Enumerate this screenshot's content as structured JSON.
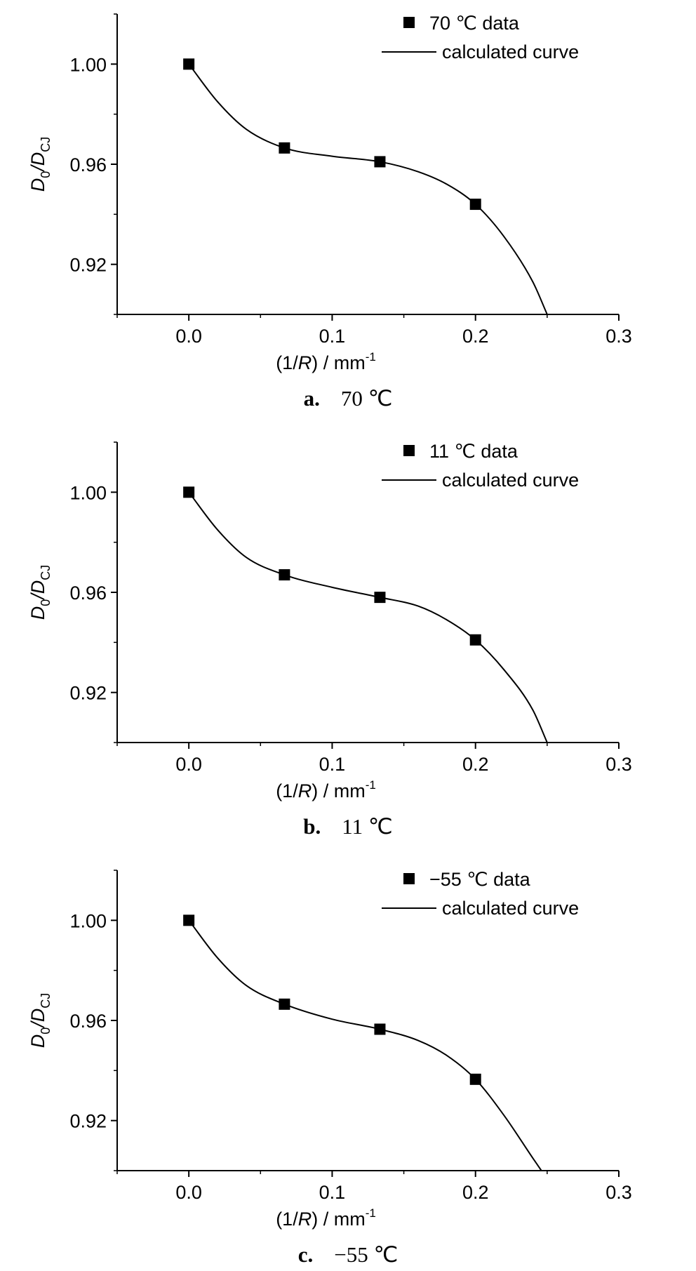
{
  "chart_data": [
    {
      "type": "scatter",
      "caption_letter": "a.",
      "caption_text": "70 ℃",
      "legend": {
        "marker_label": "70 ℃  data",
        "line_label": "calculated curve",
        "placement": "top-right"
      },
      "ylabel": {
        "main": "D",
        "sub1": "0",
        "slash": "/D",
        "sub2": "CJ"
      },
      "xlabel": {
        "pre": "(1/",
        "var": "R",
        "post": ") / mm",
        "sup": "-1"
      },
      "xlim": [
        -0.05,
        0.3
      ],
      "ylim": [
        0.9,
        1.02
      ],
      "xticks": [
        0.0,
        0.1,
        0.2,
        0.3
      ],
      "xtick_labels": [
        "0.0",
        "0.1",
        "0.2",
        "0.3"
      ],
      "yticks": [
        0.92,
        0.96,
        1.0
      ],
      "ytick_labels": [
        "0.92",
        "0.96",
        "1.00"
      ],
      "grid": false,
      "series": [
        {
          "name": "70 ℃  data",
          "kind": "markers",
          "x": [
            0.0,
            0.0667,
            0.1333,
            0.2
          ],
          "y": [
            1.0,
            0.9665,
            0.961,
            0.944
          ]
        },
        {
          "name": "calculated curve",
          "kind": "line",
          "x": [
            0.0,
            0.02,
            0.04,
            0.0667,
            0.1,
            0.1333,
            0.16,
            0.18,
            0.2,
            0.22,
            0.24,
            0.25
          ],
          "y": [
            1.0,
            0.985,
            0.974,
            0.9665,
            0.9632,
            0.961,
            0.957,
            0.952,
            0.944,
            0.931,
            0.913,
            0.9
          ]
        }
      ]
    },
    {
      "type": "scatter",
      "caption_letter": "b.",
      "caption_text": "11 ℃",
      "legend": {
        "marker_label": "11 ℃  data",
        "line_label": "calculated curve",
        "placement": "top-right"
      },
      "ylabel": {
        "main": "D",
        "sub1": "0",
        "slash": "/D",
        "sub2": "CJ"
      },
      "xlabel": {
        "pre": "(1/",
        "var": "R",
        "post": ") / mm",
        "sup": "-1"
      },
      "xlim": [
        -0.05,
        0.3
      ],
      "ylim": [
        0.9,
        1.02
      ],
      "xticks": [
        0.0,
        0.1,
        0.2,
        0.3
      ],
      "xtick_labels": [
        "0.0",
        "0.1",
        "0.2",
        "0.3"
      ],
      "yticks": [
        0.92,
        0.96,
        1.0
      ],
      "ytick_labels": [
        "0.92",
        "0.96",
        "1.00"
      ],
      "grid": false,
      "series": [
        {
          "name": "11 ℃  data",
          "kind": "markers",
          "x": [
            0.0,
            0.0667,
            0.1333,
            0.2
          ],
          "y": [
            1.0,
            0.967,
            0.958,
            0.941
          ]
        },
        {
          "name": "calculated curve",
          "kind": "line",
          "x": [
            0.0,
            0.02,
            0.04,
            0.0667,
            0.1,
            0.1333,
            0.16,
            0.18,
            0.2,
            0.22,
            0.24,
            0.25
          ],
          "y": [
            1.0,
            0.985,
            0.974,
            0.967,
            0.962,
            0.958,
            0.9545,
            0.949,
            0.941,
            0.929,
            0.913,
            0.9
          ]
        }
      ]
    },
    {
      "type": "scatter",
      "caption_letter": "c.",
      "caption_text": "−55 ℃",
      "legend": {
        "marker_label": "−55 ℃  data",
        "line_label": "calculated curve",
        "placement": "top-right"
      },
      "ylabel": {
        "main": "D",
        "sub1": "0",
        "slash": "/D",
        "sub2": "CJ"
      },
      "xlabel": {
        "pre": "(1/",
        "var": "R",
        "post": ") / mm",
        "sup": "-1"
      },
      "xlim": [
        -0.05,
        0.3
      ],
      "ylim": [
        0.9,
        1.02
      ],
      "xticks": [
        0.0,
        0.1,
        0.2,
        0.3
      ],
      "xtick_labels": [
        "0.0",
        "0.1",
        "0.2",
        "0.3"
      ],
      "yticks": [
        0.92,
        0.96,
        1.0
      ],
      "ytick_labels": [
        "0.92",
        "0.96",
        "1.00"
      ],
      "grid": false,
      "series": [
        {
          "name": "−55 ℃  data",
          "kind": "markers",
          "x": [
            0.0,
            0.0667,
            0.1333,
            0.2
          ],
          "y": [
            1.0,
            0.9665,
            0.9565,
            0.9365
          ]
        },
        {
          "name": "calculated curve",
          "kind": "line",
          "x": [
            0.0,
            0.02,
            0.04,
            0.0667,
            0.1,
            0.1333,
            0.16,
            0.18,
            0.2,
            0.22,
            0.24,
            0.246
          ],
          "y": [
            1.0,
            0.985,
            0.974,
            0.9665,
            0.9605,
            0.9565,
            0.952,
            0.946,
            0.9365,
            0.922,
            0.905,
            0.9
          ]
        }
      ]
    }
  ]
}
